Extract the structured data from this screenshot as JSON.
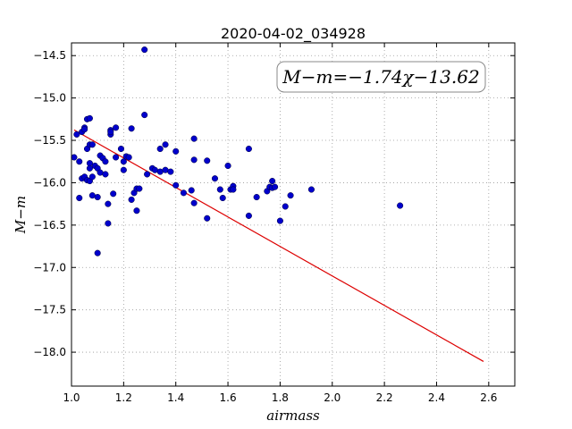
{
  "chart_data": {
    "type": "scatter",
    "title": "2020-04-02_034928",
    "xlabel": "airmass",
    "ylabel": "M−m",
    "xlim": [
      1.0,
      2.7
    ],
    "ylim": [
      -18.4,
      -14.35
    ],
    "xticks": [
      "1.0",
      "1.2",
      "1.4",
      "1.6",
      "1.8",
      "2.0",
      "2.2",
      "2.4",
      "2.6"
    ],
    "xtick_values": [
      1.0,
      1.2,
      1.4,
      1.6,
      1.8,
      2.0,
      2.2,
      2.4,
      2.6
    ],
    "yticks": [
      "−14.5",
      "−15.0",
      "−15.5",
      "−16.0",
      "−16.5",
      "−17.0",
      "−17.5",
      "−18.0"
    ],
    "ytick_values": [
      -14.5,
      -15.0,
      -15.5,
      -16.0,
      -16.5,
      -17.0,
      -17.5,
      -18.0
    ],
    "grid": true,
    "annotation": "M−m=−1.74χ−13.62",
    "fit_line": {
      "slope": -1.74,
      "intercept": -13.62,
      "x_range": [
        1.01,
        2.58
      ],
      "color": "#dd0000"
    },
    "point_color": "#0000cc",
    "points": [
      [
        1.01,
        -15.7
      ],
      [
        1.02,
        -15.43
      ],
      [
        1.03,
        -15.75
      ],
      [
        1.03,
        -16.18
      ],
      [
        1.04,
        -15.95
      ],
      [
        1.04,
        -15.4
      ],
      [
        1.05,
        -15.35
      ],
      [
        1.05,
        -15.37
      ],
      [
        1.05,
        -15.93
      ],
      [
        1.06,
        -15.25
      ],
      [
        1.06,
        -15.6
      ],
      [
        1.06,
        -15.97
      ],
      [
        1.07,
        -15.98
      ],
      [
        1.07,
        -15.55
      ],
      [
        1.07,
        -15.77
      ],
      [
        1.07,
        -15.24
      ],
      [
        1.07,
        -15.83
      ],
      [
        1.08,
        -15.93
      ],
      [
        1.08,
        -15.55
      ],
      [
        1.08,
        -16.15
      ],
      [
        1.09,
        -15.8
      ],
      [
        1.1,
        -15.83
      ],
      [
        1.1,
        -16.17
      ],
      [
        1.1,
        -16.83
      ],
      [
        1.11,
        -15.68
      ],
      [
        1.11,
        -15.88
      ],
      [
        1.12,
        -15.71
      ],
      [
        1.13,
        -15.75
      ],
      [
        1.13,
        -15.9
      ],
      [
        1.14,
        -16.25
      ],
      [
        1.14,
        -16.48
      ],
      [
        1.15,
        -15.38
      ],
      [
        1.15,
        -15.43
      ],
      [
        1.15,
        -15.4
      ],
      [
        1.16,
        -16.13
      ],
      [
        1.17,
        -15.35
      ],
      [
        1.17,
        -15.7
      ],
      [
        1.19,
        -15.6
      ],
      [
        1.2,
        -15.75
      ],
      [
        1.2,
        -15.85
      ],
      [
        1.21,
        -15.69
      ],
      [
        1.22,
        -15.7
      ],
      [
        1.23,
        -15.36
      ],
      [
        1.23,
        -16.2
      ],
      [
        1.24,
        -16.12
      ],
      [
        1.25,
        -16.33
      ],
      [
        1.25,
        -16.07
      ],
      [
        1.26,
        -16.07
      ],
      [
        1.28,
        -14.43
      ],
      [
        1.28,
        -15.2
      ],
      [
        1.29,
        -15.9
      ],
      [
        1.31,
        -15.83
      ],
      [
        1.32,
        -15.85
      ],
      [
        1.34,
        -15.6
      ],
      [
        1.34,
        -15.87
      ],
      [
        1.36,
        -15.55
      ],
      [
        1.36,
        -15.85
      ],
      [
        1.38,
        -15.87
      ],
      [
        1.4,
        -16.03
      ],
      [
        1.4,
        -15.63
      ],
      [
        1.43,
        -16.12
      ],
      [
        1.46,
        -16.09
      ],
      [
        1.47,
        -15.48
      ],
      [
        1.47,
        -15.73
      ],
      [
        1.47,
        -16.24
      ],
      [
        1.52,
        -15.74
      ],
      [
        1.52,
        -16.42
      ],
      [
        1.55,
        -15.95
      ],
      [
        1.57,
        -16.08
      ],
      [
        1.58,
        -16.18
      ],
      [
        1.6,
        -15.8
      ],
      [
        1.61,
        -16.08
      ],
      [
        1.62,
        -16.04
      ],
      [
        1.62,
        -16.08
      ],
      [
        1.68,
        -15.6
      ],
      [
        1.68,
        -16.39
      ],
      [
        1.71,
        -16.17
      ],
      [
        1.75,
        -16.1
      ],
      [
        1.76,
        -16.05
      ],
      [
        1.77,
        -15.98
      ],
      [
        1.77,
        -16.06
      ],
      [
        1.78,
        -16.05
      ],
      [
        1.8,
        -16.45
      ],
      [
        1.82,
        -16.28
      ],
      [
        1.84,
        -16.15
      ],
      [
        1.92,
        -16.08
      ],
      [
        2.26,
        -16.27
      ]
    ]
  }
}
